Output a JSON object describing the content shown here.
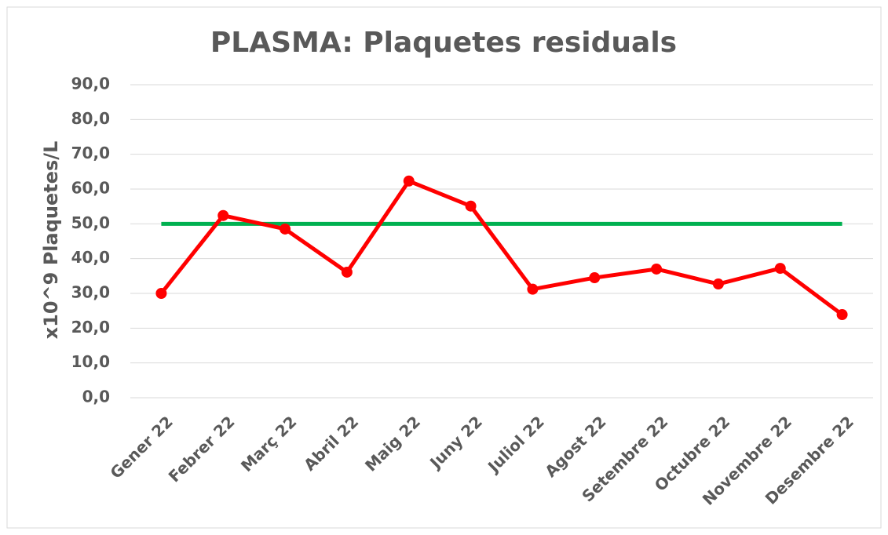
{
  "chart_data": {
    "type": "line",
    "title": "PLASMA: Plaquetes residuals",
    "ylabel": "x10^9 Plaquetes/L",
    "categories": [
      "Gener 22",
      "Febrer 22",
      "Març 22",
      "Abril 22",
      "Maig 22",
      "Juny 22",
      "Juliol 22",
      "Agost 22",
      "Setembre 22",
      "Octubre 22",
      "Novembre 22",
      "Desembre 22"
    ],
    "series": [
      {
        "color": "#ff0000",
        "values": [
          30.0,
          52.4,
          48.5,
          36.1,
          62.3,
          55.1,
          31.2,
          34.5,
          37.0,
          32.7,
          37.2,
          23.9
        ],
        "markers": true
      },
      {
        "color": "#00b050",
        "values": [
          50,
          50,
          50,
          50,
          50,
          50,
          50,
          50,
          50,
          50,
          50,
          50
        ],
        "markers": false
      }
    ],
    "ylim": [
      0,
      90
    ],
    "yticks": [
      {
        "value": 0,
        "label": "0,0"
      },
      {
        "value": 10,
        "label": "10,0"
      },
      {
        "value": 20,
        "label": "20,0"
      },
      {
        "value": 30,
        "label": "30,0"
      },
      {
        "value": 40,
        "label": "40,0"
      },
      {
        "value": 50,
        "label": "50,0"
      },
      {
        "value": 60,
        "label": "60,0"
      },
      {
        "value": 70,
        "label": "70,0"
      },
      {
        "value": 80,
        "label": "80,0"
      },
      {
        "value": 90,
        "label": "90,0"
      }
    ],
    "grid": true
  }
}
